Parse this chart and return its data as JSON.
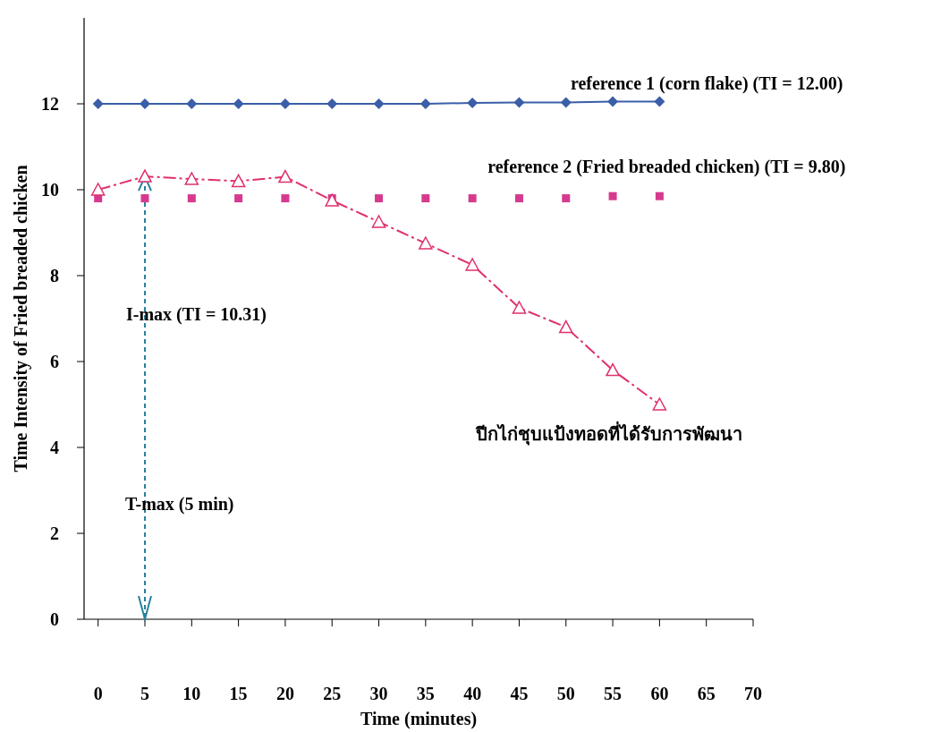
{
  "chart_data": {
    "type": "line",
    "xlabel": "Time (minutes)",
    "ylabel": "Time Intensity of Fried breaded chicken",
    "x": [
      0,
      5,
      10,
      15,
      20,
      25,
      30,
      35,
      40,
      45,
      50,
      55,
      60
    ],
    "xlim": [
      -1.5,
      70
    ],
    "xticks": [
      0,
      5,
      10,
      15,
      20,
      25,
      30,
      35,
      40,
      45,
      50,
      55,
      60,
      65,
      70
    ],
    "ylim": [
      0,
      14
    ],
    "yticks": [
      0,
      2,
      4,
      6,
      8,
      10,
      12
    ],
    "grid": false,
    "series": [
      {
        "name": "reference 1 (corn flake) (TI = 12.00)",
        "color": "#3a5ea8",
        "type": "line",
        "marker": "diamond",
        "line_style": "solid",
        "values": [
          12.0,
          12.0,
          12.0,
          12.0,
          12.0,
          12.0,
          12.0,
          12.0,
          12.02,
          12.03,
          12.03,
          12.05,
          12.05
        ]
      },
      {
        "name": "reference 2 (Fried breaded chicken) (TI = 9.80)",
        "color": "#d63a8e",
        "type": "scatter",
        "marker": "square",
        "values": [
          9.8,
          9.8,
          9.8,
          9.8,
          9.8,
          9.8,
          9.8,
          9.8,
          9.8,
          9.8,
          9.8,
          9.85,
          9.85
        ]
      },
      {
        "name": "ปีกไก่ชุบแป้งทอดที่ได้รับการพัฒนา",
        "color": "#e0306a",
        "type": "line",
        "marker": "triangle",
        "line_style": "dashed",
        "values": [
          10.0,
          10.31,
          10.25,
          10.2,
          10.3,
          9.75,
          9.25,
          8.75,
          8.25,
          7.25,
          6.8,
          5.8,
          5.0
        ]
      }
    ],
    "ref_lines": [
      {
        "axis": "x",
        "value": 5,
        "label": "T-max (5 min)",
        "color": "#2a7f9e",
        "line_style": "dashed"
      }
    ],
    "annotations": [
      "I-max (TI = 10.31)"
    ]
  }
}
